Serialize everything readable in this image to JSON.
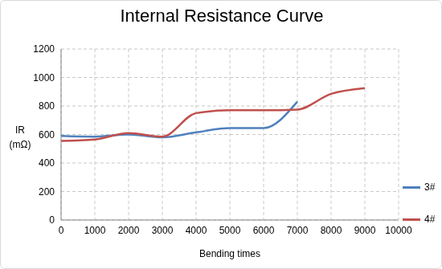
{
  "chart_data": {
    "type": "line",
    "title": "Internal Resistance Curve",
    "x_label": "Bending times",
    "y_label": "IR (mΩ)",
    "x": [
      0,
      1000,
      2000,
      3000,
      4000,
      5000,
      6000,
      7000,
      8000,
      9000
    ],
    "series": [
      {
        "name": "3#",
        "color": "#4f81bd",
        "marker": "none",
        "line_style": "solid",
        "values": [
          590,
          585,
          600,
          580,
          615,
          645,
          645,
          830,
          null,
          null
        ]
      },
      {
        "name": "4#",
        "color": "#c0504d",
        "marker": "none",
        "line_style": "solid",
        "values": [
          555,
          565,
          610,
          585,
          750,
          770,
          770,
          775,
          885,
          925
        ]
      }
    ],
    "xlim": [
      0,
      10000
    ],
    "xticks": [
      0,
      1000,
      2000,
      3000,
      4000,
      5000,
      6000,
      7000,
      8000,
      9000,
      10000
    ],
    "ylim": [
      0,
      1200
    ],
    "yticks": [
      0,
      200,
      400,
      600,
      800,
      1000,
      1200
    ],
    "grid": true,
    "legend": "right"
  }
}
